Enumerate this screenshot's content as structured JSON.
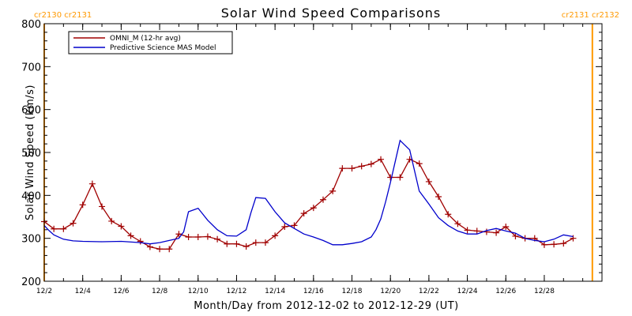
{
  "chart_data": {
    "type": "line",
    "title": "Solar Wind Speed Comparisons",
    "xlabel": "Month/Day from 2012-12-02 to 2012-12-29 (UT)",
    "ylabel": "Solar Wind Speed (km/s)",
    "xlim": [
      "2012-12-02",
      "2012-12-31"
    ],
    "ylim": [
      200,
      800
    ],
    "y_ticks": [
      200,
      300,
      400,
      500,
      600,
      700,
      800
    ],
    "x_ticks": [
      {
        "date": "2012-12-02",
        "label": "12/2"
      },
      {
        "date": "2012-12-04",
        "label": "12/4"
      },
      {
        "date": "2012-12-06",
        "label": "12/6"
      },
      {
        "date": "2012-12-08",
        "label": "12/8"
      },
      {
        "date": "2012-12-10",
        "label": "12/10"
      },
      {
        "date": "2012-12-12",
        "label": "12/12"
      },
      {
        "date": "2012-12-14",
        "label": "12/14"
      },
      {
        "date": "2012-12-16",
        "label": "12/16"
      },
      {
        "date": "2012-12-18",
        "label": "12/18"
      },
      {
        "date": "2012-12-20",
        "label": "12/20"
      },
      {
        "date": "2012-12-22",
        "label": "12/22"
      },
      {
        "date": "2012-12-24",
        "label": "12/24"
      },
      {
        "date": "2012-12-26",
        "label": "12/26"
      },
      {
        "date": "2012-12-28",
        "label": "12/28"
      }
    ],
    "legend_position": "top-left",
    "grid": false,
    "series": [
      {
        "name": "OMNI_M (12-hr avg)",
        "color": "#a00000",
        "marker": "plus",
        "x": [
          "2012-12-02 00:00",
          "2012-12-02 12:00",
          "2012-12-03 00:00",
          "2012-12-03 12:00",
          "2012-12-04 00:00",
          "2012-12-04 12:00",
          "2012-12-05 00:00",
          "2012-12-05 12:00",
          "2012-12-06 00:00",
          "2012-12-06 12:00",
          "2012-12-07 00:00",
          "2012-12-07 12:00",
          "2012-12-08 00:00",
          "2012-12-08 12:00",
          "2012-12-09 00:00",
          "2012-12-09 12:00",
          "2012-12-10 00:00",
          "2012-12-10 12:00",
          "2012-12-11 00:00",
          "2012-12-11 12:00",
          "2012-12-12 00:00",
          "2012-12-12 12:00",
          "2012-12-13 00:00",
          "2012-12-13 12:00",
          "2012-12-14 00:00",
          "2012-12-14 12:00",
          "2012-12-15 00:00",
          "2012-12-15 12:00",
          "2012-12-16 00:00",
          "2012-12-16 12:00",
          "2012-12-17 00:00",
          "2012-12-17 12:00",
          "2012-12-18 00:00",
          "2012-12-18 12:00",
          "2012-12-19 00:00",
          "2012-12-19 12:00",
          "2012-12-20 00:00",
          "2012-12-20 12:00",
          "2012-12-21 00:00",
          "2012-12-21 12:00",
          "2012-12-22 00:00",
          "2012-12-22 12:00",
          "2012-12-23 00:00",
          "2012-12-23 12:00",
          "2012-12-24 00:00",
          "2012-12-24 12:00",
          "2012-12-25 00:00",
          "2012-12-25 12:00",
          "2012-12-26 00:00",
          "2012-12-26 12:00",
          "2012-12-27 00:00",
          "2012-12-27 12:00",
          "2012-12-28 00:00",
          "2012-12-28 12:00",
          "2012-12-29 00:00",
          "2012-12-29 12:00"
        ],
        "y": [
          339,
          322,
          322,
          335,
          378,
          427,
          374,
          340,
          328,
          306,
          293,
          280,
          275,
          275,
          310,
          303,
          303,
          304,
          298,
          287,
          287,
          281,
          290,
          290,
          306,
          327,
          330,
          358,
          371,
          390,
          410,
          463,
          463,
          468,
          473,
          484,
          442,
          442,
          484,
          474,
          432,
          397,
          356,
          334,
          319,
          317,
          315,
          313,
          327,
          305,
          300,
          300,
          285,
          286,
          288,
          300
        ]
      },
      {
        "name": "Predictive Science MAS Model",
        "color": "#0000cc",
        "marker": "none",
        "x": [
          "2012-12-02 00:00",
          "2012-12-02 06:00",
          "2012-12-02 12:00",
          "2012-12-03 00:00",
          "2012-12-03 12:00",
          "2012-12-04 00:00",
          "2012-12-05 00:00",
          "2012-12-06 00:00",
          "2012-12-07 00:00",
          "2012-12-07 12:00",
          "2012-12-08 00:00",
          "2012-12-08 12:00",
          "2012-12-09 00:00",
          "2012-12-09 06:00",
          "2012-12-09 12:00",
          "2012-12-10 00:00",
          "2012-12-10 12:00",
          "2012-12-11 00:00",
          "2012-12-11 12:00",
          "2012-12-12 00:00",
          "2012-12-12 12:00",
          "2012-12-12 18:00",
          "2012-12-13 00:00",
          "2012-12-13 12:00",
          "2012-12-14 00:00",
          "2012-12-14 12:00",
          "2012-12-15 00:00",
          "2012-12-15 12:00",
          "2012-12-16 00:00",
          "2012-12-16 12:00",
          "2012-12-17 00:00",
          "2012-12-17 12:00",
          "2012-12-18 00:00",
          "2012-12-18 12:00",
          "2012-12-19 00:00",
          "2012-12-19 06:00",
          "2012-12-19 12:00",
          "2012-12-19 18:00",
          "2012-12-20 00:00",
          "2012-12-20 12:00",
          "2012-12-21 00:00",
          "2012-12-21 12:00",
          "2012-12-22 00:00",
          "2012-12-22 12:00",
          "2012-12-23 00:00",
          "2012-12-23 12:00",
          "2012-12-24 00:00",
          "2012-12-24 12:00",
          "2012-12-25 00:00",
          "2012-12-25 12:00",
          "2012-12-26 00:00",
          "2012-12-26 12:00",
          "2012-12-27 00:00",
          "2012-12-27 12:00",
          "2012-12-28 00:00",
          "2012-12-28 12:00",
          "2012-12-29 00:00",
          "2012-12-29 12:00"
        ],
        "y": [
          330,
          318,
          308,
          298,
          294,
          293,
          292,
          293,
          290,
          287,
          290,
          295,
          300,
          315,
          362,
          370,
          342,
          320,
          306,
          305,
          320,
          360,
          395,
          393,
          362,
          336,
          323,
          310,
          303,
          295,
          285,
          285,
          288,
          292,
          303,
          320,
          345,
          385,
          430,
          528,
          506,
          410,
          380,
          348,
          330,
          317,
          310,
          310,
          318,
          323,
          317,
          312,
          300,
          295,
          292,
          298,
          308,
          304
        ]
      }
    ],
    "annotations": [
      {
        "text": "cr2130 cr2131",
        "x": "2012-12-02",
        "position": "top-left",
        "color": "#ff9900"
      },
      {
        "text": "cr2131 cr2132",
        "x": "2012-12-30 12:00",
        "position": "top-right",
        "color": "#ff9900"
      }
    ]
  }
}
